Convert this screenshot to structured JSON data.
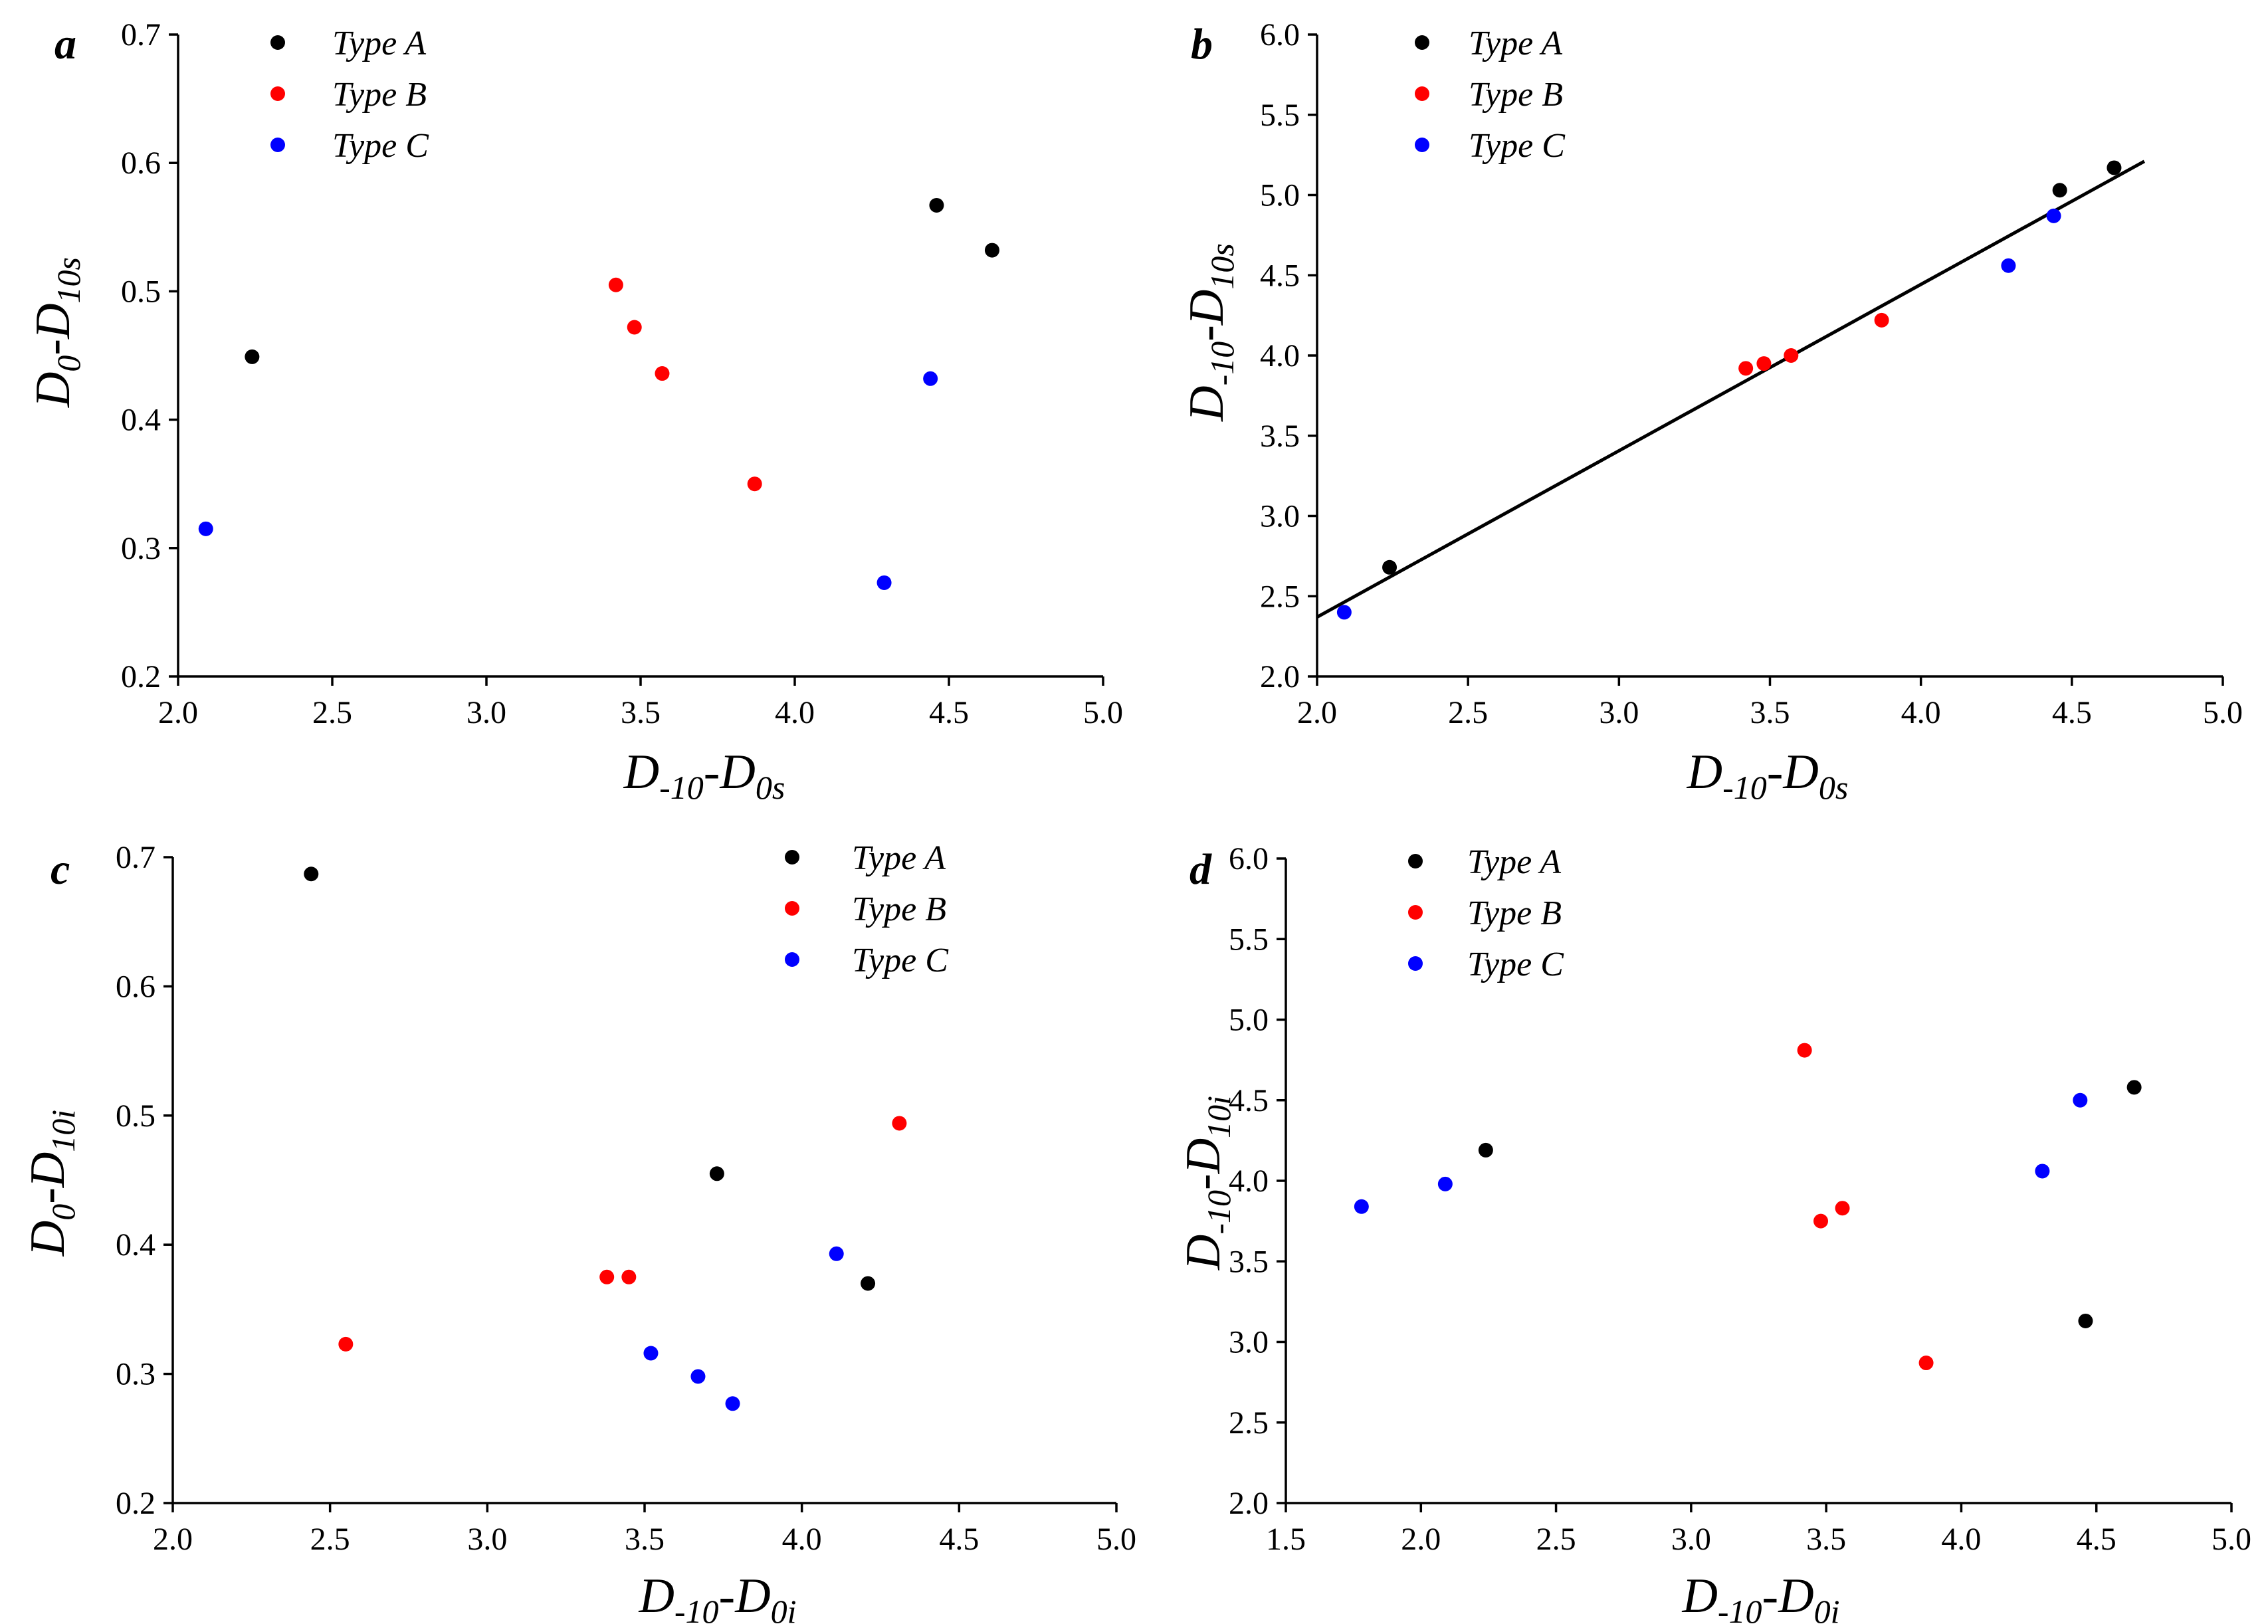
{
  "colors": {
    "Type A": "#000000",
    "Type B": "#ff0000",
    "Type C": "#0000ff"
  },
  "chart_data": [
    {
      "panel_label": "a",
      "type": "scatter",
      "xlabel": {
        "main": "D",
        "sub1": "-10",
        "mid": "-D",
        "sub2": "0s"
      },
      "ylabel": {
        "main": "D",
        "sub1": "0",
        "mid": "-D",
        "sub2": "10s"
      },
      "xlim": [
        2.0,
        5.0
      ],
      "ylim": [
        0.2,
        0.7
      ],
      "xticks": [
        2.0,
        2.5,
        3.0,
        3.5,
        4.0,
        4.5,
        5.0
      ],
      "yticks": [
        0.2,
        0.3,
        0.4,
        0.5,
        0.6,
        0.7
      ],
      "x_decimals": 1,
      "y_decimals": 1,
      "legend": [
        "Type A",
        "Type B",
        "Type C"
      ],
      "series": [
        {
          "name": "Type A",
          "points": [
            [
              2.24,
              0.449
            ],
            [
              4.46,
              0.567
            ],
            [
              4.64,
              0.532
            ]
          ]
        },
        {
          "name": "Type B",
          "points": [
            [
              3.42,
              0.505
            ],
            [
              3.48,
              0.472
            ],
            [
              3.57,
              0.436
            ],
            [
              3.87,
              0.35
            ]
          ]
        },
        {
          "name": "Type C",
          "points": [
            [
              2.09,
              0.315
            ],
            [
              4.29,
              0.273
            ],
            [
              4.44,
              0.432
            ]
          ]
        }
      ]
    },
    {
      "panel_label": "b",
      "type": "scatter",
      "xlabel": {
        "main": "D",
        "sub1": "-10",
        "mid": "-D",
        "sub2": "0s"
      },
      "ylabel": {
        "main": "D",
        "sub1": "-10",
        "mid": "-D",
        "sub2": "10s"
      },
      "xlim": [
        2.0,
        5.0
      ],
      "ylim": [
        2.0,
        6.0
      ],
      "xticks": [
        2.0,
        2.5,
        3.0,
        3.5,
        4.0,
        4.5,
        5.0
      ],
      "yticks": [
        2.0,
        2.5,
        3.0,
        3.5,
        4.0,
        4.5,
        5.0,
        5.5,
        6.0
      ],
      "x_decimals": 1,
      "y_decimals": 1,
      "legend": [
        "Type A",
        "Type B",
        "Type C"
      ],
      "series": [
        {
          "name": "Type A",
          "points": [
            [
              2.24,
              2.68
            ],
            [
              4.46,
              5.03
            ],
            [
              4.64,
              5.17
            ]
          ]
        },
        {
          "name": "Type B",
          "points": [
            [
              3.42,
              3.92
            ],
            [
              3.48,
              3.95
            ],
            [
              3.57,
              4.0
            ],
            [
              3.87,
              4.22
            ]
          ]
        },
        {
          "name": "Type C",
          "points": [
            [
              2.09,
              2.4
            ],
            [
              4.29,
              4.56
            ],
            [
              4.44,
              4.87
            ]
          ]
        }
      ],
      "fit_line": {
        "x": [
          2.0,
          4.74
        ],
        "y": [
          2.37,
          5.21
        ]
      }
    },
    {
      "panel_label": "c",
      "type": "scatter",
      "xlabel": {
        "main": "D",
        "sub1": "-10",
        "mid": "-D",
        "sub2": "0i"
      },
      "ylabel": {
        "main": "D",
        "sub1": "0",
        "mid": "-D",
        "sub2": "10i"
      },
      "xlim": [
        2.0,
        5.0
      ],
      "ylim": [
        0.2,
        0.7
      ],
      "xticks": [
        2.0,
        2.5,
        3.0,
        3.5,
        4.0,
        4.5,
        5.0
      ],
      "yticks": [
        0.2,
        0.3,
        0.4,
        0.5,
        0.6,
        0.7
      ],
      "x_decimals": 1,
      "y_decimals": 1,
      "legend": [
        "Type A",
        "Type B",
        "Type C"
      ],
      "series": [
        {
          "name": "Type A",
          "points": [
            [
              2.44,
              0.687
            ],
            [
              3.73,
              0.455
            ],
            [
              4.21,
              0.37
            ]
          ]
        },
        {
          "name": "Type B",
          "points": [
            [
              2.55,
              0.323
            ],
            [
              3.38,
              0.375
            ],
            [
              3.45,
              0.375
            ],
            [
              4.31,
              0.494
            ]
          ]
        },
        {
          "name": "Type C",
          "points": [
            [
              3.52,
              0.316
            ],
            [
              3.67,
              0.298
            ],
            [
              3.78,
              0.277
            ],
            [
              4.11,
              0.393
            ]
          ]
        }
      ]
    },
    {
      "panel_label": "d",
      "type": "scatter",
      "xlabel": {
        "main": "D",
        "sub1": "-10",
        "mid": "-D",
        "sub2": "0i"
      },
      "ylabel": {
        "main": "D",
        "sub1": "-10",
        "mid": "-D",
        "sub2": "10i"
      },
      "xlim": [
        1.5,
        5.0
      ],
      "ylim": [
        2.0,
        6.0
      ],
      "xticks": [
        1.5,
        2.0,
        2.5,
        3.0,
        3.5,
        4.0,
        4.5,
        5.0
      ],
      "yticks": [
        2.0,
        2.5,
        3.0,
        3.5,
        4.0,
        4.5,
        5.0,
        5.5,
        6.0
      ],
      "x_decimals": 1,
      "y_decimals": 1,
      "legend": [
        "Type A",
        "Type B",
        "Type C"
      ],
      "series": [
        {
          "name": "Type A",
          "points": [
            [
              2.24,
              4.19
            ],
            [
              4.46,
              3.13
            ],
            [
              4.64,
              4.58
            ]
          ]
        },
        {
          "name": "Type B",
          "points": [
            [
              3.42,
              4.81
            ],
            [
              3.48,
              3.75
            ],
            [
              3.56,
              3.83
            ],
            [
              3.87,
              2.87
            ]
          ]
        },
        {
          "name": "Type C",
          "points": [
            [
              1.78,
              3.84
            ],
            [
              2.09,
              3.98
            ],
            [
              4.3,
              4.06
            ],
            [
              4.44,
              4.5
            ]
          ]
        }
      ]
    }
  ]
}
